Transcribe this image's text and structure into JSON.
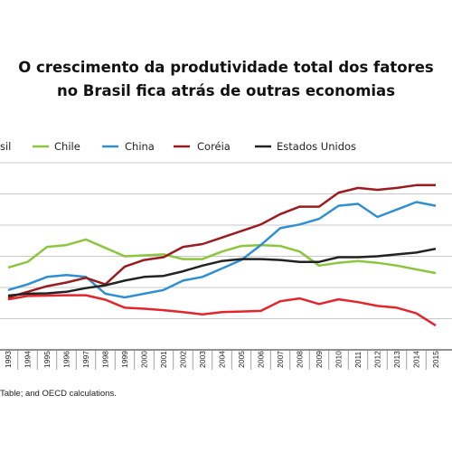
{
  "title_line1": "O crescimento da produtividade total dos fatores",
  "title_line2": "no Brasil fica atrás de outras economias",
  "source_text": "Table; and OECD calculations.",
  "chart_data": {
    "type": "line",
    "x": [
      "1993",
      "1994",
      "1995",
      "1996",
      "1997",
      "1998",
      "1999",
      "2000",
      "2001",
      "2002",
      "2003",
      "2004",
      "2005",
      "2006",
      "2007",
      "2008",
      "2009",
      "2010",
      "2011",
      "2012",
      "2013",
      "2014",
      "2015"
    ],
    "legend_position": "top",
    "grid": true,
    "series": [
      {
        "name": "Brasil",
        "color": "#e3262c",
        "visible_label": "sil",
        "values": [
          27,
          28.8,
          29,
          29.2,
          29.2,
          26.8,
          22.5,
          22,
          21.2,
          20.2,
          19,
          20.2,
          20.5,
          20.8,
          26,
          27.5,
          24.5,
          27,
          25.5,
          23.5,
          22.5,
          19.5,
          13
        ]
      },
      {
        "name": "Chile",
        "color": "#8cc63f",
        "values": [
          44,
          47,
          55,
          56,
          59,
          54.5,
          50,
          50.5,
          51,
          48.5,
          48.5,
          52.5,
          55.5,
          56,
          55.5,
          52.5,
          45,
          46.5,
          47.5,
          46.5,
          45,
          43,
          41
        ]
      },
      {
        "name": "China",
        "color": "#2f8fd1",
        "values": [
          32,
          35,
          39,
          40,
          39,
          30,
          28,
          30,
          32,
          37,
          39,
          43.5,
          48,
          56,
          65,
          67,
          70,
          77,
          78,
          71,
          75,
          79,
          77
        ]
      },
      {
        "name": "Coréia",
        "color": "#9b1c1e",
        "values": [
          28,
          31,
          34,
          36,
          38.5,
          35,
          44.5,
          48,
          49.5,
          55,
          56.5,
          60,
          63.5,
          67,
          72.5,
          76.5,
          76.5,
          84,
          86.5,
          85.5,
          86.5,
          88,
          88
        ]
      },
      {
        "name": "Estados Unidos",
        "color": "#222222",
        "values": [
          29,
          30,
          30.2,
          31,
          33,
          34.5,
          37,
          39,
          39.5,
          42,
          45,
          47.5,
          48.5,
          48.5,
          48,
          47,
          47,
          49.5,
          49.5,
          50,
          51,
          52,
          54
        ]
      }
    ]
  }
}
